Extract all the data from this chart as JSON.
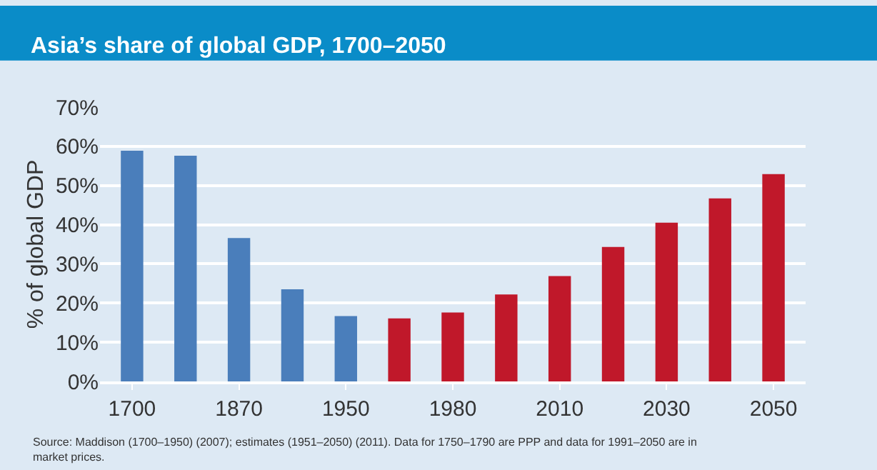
{
  "chart_data": {
    "type": "bar",
    "title": "Asia’s share of global GDP, 1700–2050",
    "ylabel": "% of global GDP",
    "categories": [
      "1700",
      null,
      "1870",
      null,
      "1950",
      null,
      "1980",
      null,
      "2010",
      null,
      "2030",
      null,
      "2050"
    ],
    "values": [
      58.9,
      57.6,
      36.6,
      23.5,
      16.7,
      16.1,
      17.6,
      22.2,
      26.9,
      34.3,
      40.5,
      46.7,
      52.9
    ],
    "colors": [
      "#4a7ebb",
      "#4a7ebb",
      "#4a7ebb",
      "#4a7ebb",
      "#4a7ebb",
      "#c0182a",
      "#c0182a",
      "#c0182a",
      "#c0182a",
      "#c0182a",
      "#c0182a",
      "#c0182a",
      "#c0182a"
    ],
    "ylim": [
      0,
      70
    ],
    "yticks": [
      {
        "value": 0,
        "label": "0%"
      },
      {
        "value": 10,
        "label": "10%"
      },
      {
        "value": 20,
        "label": "20%"
      },
      {
        "value": 30,
        "label": "30%"
      },
      {
        "value": 40,
        "label": "40%"
      },
      {
        "value": 50,
        "label": "50%"
      },
      {
        "value": 60,
        "label": "60%"
      },
      {
        "value": 70,
        "label": "70%"
      }
    ],
    "grid": "y",
    "annotations": [
      "Source: Maddison (1700–1950) (2007); estimates (1951–2050) (2011). Data for 1750–1790 are PPP and data for 1991–2050 are in market prices."
    ]
  }
}
